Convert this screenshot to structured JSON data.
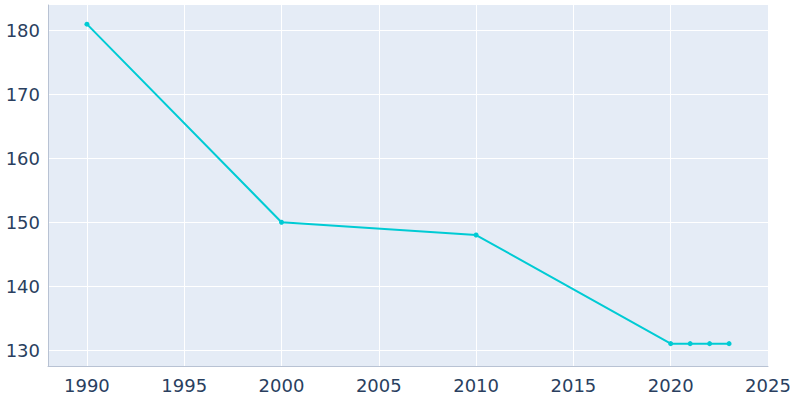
{
  "chart_data": {
    "type": "line",
    "x": [
      1990,
      2000,
      2010,
      2020,
      2021,
      2022,
      2023
    ],
    "values": [
      181,
      150,
      148,
      131,
      131,
      131,
      131
    ],
    "color": "#00cbd4",
    "marker": "circle",
    "xlim": [
      1988,
      2025
    ],
    "xticks": [
      1990,
      1995,
      2000,
      2005,
      2010,
      2015,
      2020,
      2025
    ],
    "ylim": [
      127.5,
      184
    ],
    "yticks": [
      130,
      140,
      150,
      160,
      170,
      180
    ],
    "grid": true
  }
}
